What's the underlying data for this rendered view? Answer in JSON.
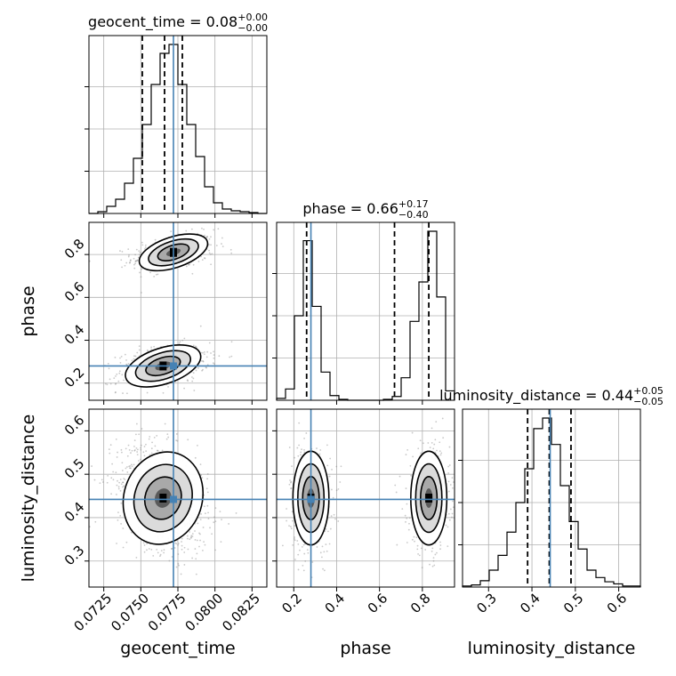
{
  "chart_data": {
    "type": "corner",
    "parameters": [
      {
        "name": "geocent_time",
        "title": {
          "text": "geocent_time = 0.08",
          "plus": "+0.00",
          "minus": "−0.00"
        },
        "range": [
          0.0715,
          0.0835
        ],
        "ticks": [
          0.0725,
          0.075,
          0.0775,
          0.08,
          0.0825
        ],
        "tick_labels": [
          "0.0725",
          "0.0750",
          "0.0775",
          "0.0800",
          "0.0825"
        ],
        "truth": 0.0772,
        "quantiles": [
          0.0751,
          0.0766,
          0.0778
        ],
        "hist": {
          "edges_start": 0.0715,
          "bin_width": 0.0006,
          "counts": [
            0,
            2,
            8,
            16,
            34,
            62,
            100,
            145,
            180,
            190,
            145,
            100,
            64,
            30,
            12,
            5,
            3,
            2,
            1,
            0
          ]
        }
      },
      {
        "name": "phase",
        "title": {
          "text": "phase = 0.66",
          "plus": "+0.17",
          "minus": "−0.40"
        },
        "range": [
          0.12,
          0.95
        ],
        "ticks": [
          0.2,
          0.4,
          0.6,
          0.8
        ],
        "tick_labels": [
          "0.2",
          "0.4",
          "0.6",
          "0.8"
        ],
        "truth": 0.28,
        "quantiles": [
          0.26,
          0.67,
          0.83
        ],
        "hist": {
          "edges_start": 0.12,
          "bin_width": 0.0415,
          "counts": [
            2,
            12,
            90,
            170,
            100,
            30,
            5,
            1,
            0,
            0,
            0,
            0,
            1,
            4,
            24,
            84,
            126,
            180,
            110,
            10
          ]
        }
      },
      {
        "name": "luminosity_distance",
        "title": {
          "text": "luminosity_distance = 0.44",
          "plus": "+0.05",
          "minus": "−0.05"
        },
        "range": [
          0.24,
          0.65
        ],
        "ticks": [
          0.3,
          0.4,
          0.5,
          0.6
        ],
        "tick_labels": [
          "0.3",
          "0.4",
          "0.5",
          "0.6"
        ],
        "truth": 0.442,
        "quantiles": [
          0.39,
          0.44,
          0.49
        ],
        "hist": {
          "edges_start": 0.24,
          "bin_width": 0.0205,
          "counts": [
            1,
            2,
            6,
            16,
            30,
            52,
            80,
            112,
            150,
            160,
            135,
            96,
            62,
            36,
            16,
            9,
            5,
            3,
            1,
            1
          ]
        }
      }
    ],
    "truth_color": "#4682b4",
    "grid": true,
    "density_contours": true
  }
}
